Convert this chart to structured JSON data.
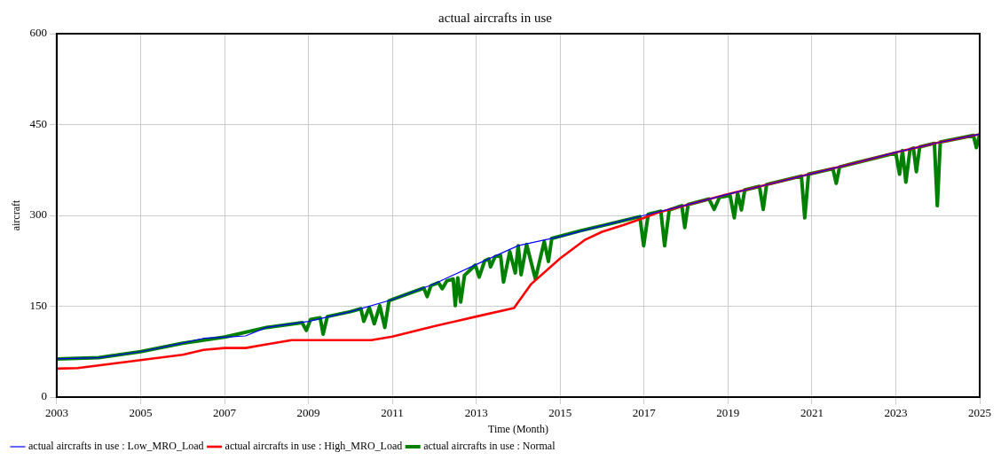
{
  "chart_data": {
    "type": "line",
    "title": "actual aircrafts in use",
    "xlabel": "Time (Month)",
    "ylabel": "aircraft",
    "xlim": [
      2003,
      2025
    ],
    "xticks": [
      2003,
      2005,
      2007,
      2009,
      2011,
      2013,
      2015,
      2017,
      2019,
      2021,
      2023,
      2025
    ],
    "ylim": [
      0,
      600
    ],
    "yticks": [
      0,
      150,
      300,
      450,
      600
    ],
    "grid": true,
    "legend": "bottom",
    "series": [
      {
        "name": "actual aircrafts in use : Low_MRO_Load",
        "color": "#0000ff",
        "x": [
          2003,
          2004,
          2005,
          2006,
          2006.5,
          2007,
          2007.5,
          2008,
          2009,
          2010,
          2011,
          2012,
          2013,
          2014,
          2015,
          2016,
          2017,
          2018,
          2019,
          2020,
          2021,
          2022,
          2023,
          2024,
          2025
        ],
        "values": [
          63,
          65,
          75,
          89,
          97,
          99,
          101,
          115,
          125,
          141,
          161,
          187,
          219,
          250,
          265,
          283,
          300,
          317,
          335,
          352,
          369,
          386,
          404,
          420,
          434
        ]
      },
      {
        "name": "actual aircrafts in use : High_MRO_Load",
        "color": "#ff0000",
        "x": [
          2003,
          2003.5,
          2005,
          2006,
          2006.5,
          2007,
          2007.5,
          2008,
          2008.6,
          2010.5,
          2011,
          2012,
          2013,
          2013.9,
          2014.3,
          2015,
          2015.6,
          2016,
          2016.5,
          2017,
          2017.3,
          2018,
          2019,
          2020,
          2021,
          2022,
          2023,
          2024,
          2025
        ],
        "values": [
          47,
          48,
          61,
          70,
          78,
          81,
          81,
          87,
          94,
          94,
          100,
          117,
          133,
          147,
          186,
          229,
          260,
          273,
          284,
          296,
          304,
          317,
          335,
          352,
          369,
          386,
          404,
          420,
          434
        ]
      },
      {
        "name": "actual aircrafts in use : Normal",
        "color": "#008000",
        "x": [
          2003,
          2004,
          2005,
          2006,
          2007,
          2008,
          2008.85,
          2008.95,
          2009.05,
          2009.28,
          2009.35,
          2009.45,
          2010,
          2010.25,
          2010.32,
          2010.45,
          2010.57,
          2010.7,
          2010.82,
          2010.92,
          2011,
          2011.75,
          2011.83,
          2011.92,
          2012.1,
          2012.19,
          2012.3,
          2012.45,
          2012.5,
          2012.56,
          2012.63,
          2012.72,
          2012.98,
          2013.07,
          2013.2,
          2013.3,
          2013.34,
          2013.45,
          2013.58,
          2013.65,
          2013.8,
          2013.93,
          2014,
          2014.07,
          2014.2,
          2014.41,
          2014.62,
          2014.72,
          2014.8,
          2015.5,
          2016,
          2016.9,
          2016.99,
          2017.1,
          2017.4,
          2017.49,
          2017.6,
          2017.9,
          2017.97,
          2018.05,
          2018.55,
          2018.67,
          2018.8,
          2019.05,
          2019.15,
          2019.23,
          2019.32,
          2019.4,
          2019.75,
          2019.84,
          2019.92,
          2020.75,
          2020.83,
          2020.92,
          2021.5,
          2021.58,
          2021.66,
          2022,
          2023,
          2023.09,
          2023.16,
          2023.24,
          2023.34,
          2023.42,
          2023.49,
          2023.57,
          2023.92,
          2023.99,
          2024.06,
          2024.85,
          2024.92,
          2025
        ],
        "values": [
          63,
          65,
          75,
          89,
          99,
          115,
          123,
          110,
          128,
          131,
          104,
          133,
          141,
          146,
          125,
          148,
          121,
          151,
          115,
          159,
          161,
          180,
          166,
          184,
          189,
          179,
          192,
          195,
          151,
          197,
          157,
          201,
          218,
          198,
          225,
          228,
          215,
          232,
          234,
          190,
          240,
          205,
          250,
          202,
          252,
          195,
          257,
          224,
          262,
          275,
          283,
          298,
          250,
          302,
          307,
          250,
          309,
          316,
          280,
          318,
          327,
          310,
          330,
          333,
          296,
          337,
          309,
          342,
          348,
          310,
          351,
          365,
          296,
          368,
          377,
          353,
          380,
          386,
          403,
          368,
          407,
          355,
          409,
          411,
          372,
          413,
          419,
          316,
          421,
          432,
          412,
          434
        ]
      }
    ]
  }
}
